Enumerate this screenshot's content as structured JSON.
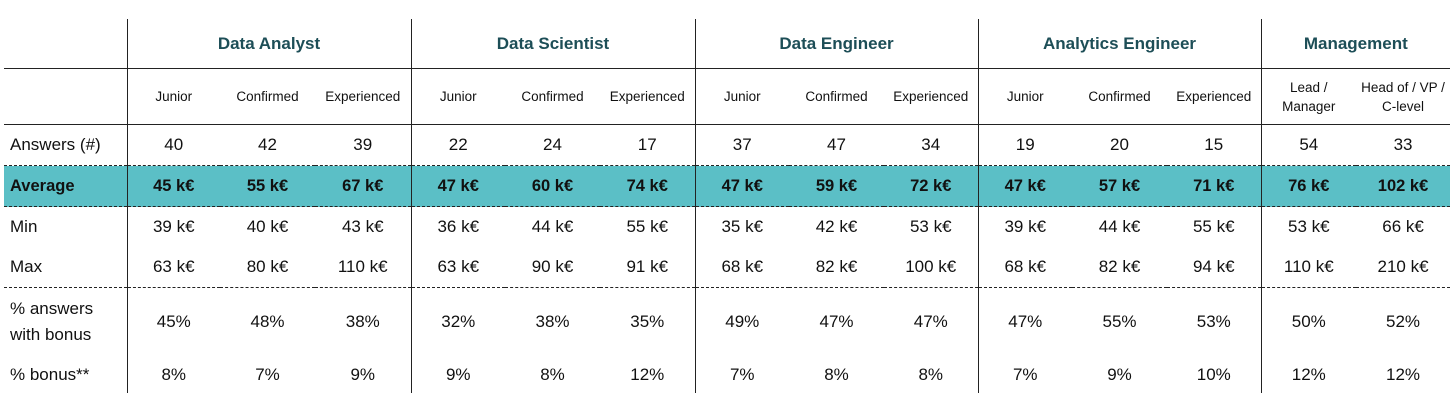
{
  "chart_data": {
    "type": "table",
    "groups": [
      {
        "name": "Data Analyst",
        "levels": [
          "Junior",
          "Confirmed",
          "Experienced"
        ]
      },
      {
        "name": "Data Scientist",
        "levels": [
          "Junior",
          "Confirmed",
          "Experienced"
        ]
      },
      {
        "name": "Data Engineer",
        "levels": [
          "Junior",
          "Confirmed",
          "Experienced"
        ]
      },
      {
        "name": "Analytics Engineer",
        "levels": [
          "Junior",
          "Confirmed",
          "Experienced"
        ]
      },
      {
        "name": "Management",
        "levels": [
          "Lead / Manager",
          "Head of / VP / C-level"
        ]
      }
    ],
    "rows": [
      {
        "label": "Answers (#)",
        "values": [
          "40",
          "42",
          "39",
          "22",
          "24",
          "17",
          "37",
          "47",
          "34",
          "19",
          "20",
          "15",
          "54",
          "33"
        ]
      },
      {
        "label": "Average",
        "values": [
          "45 k€",
          "55 k€",
          "67 k€",
          "47 k€",
          "60 k€",
          "74 k€",
          "47 k€",
          "59 k€",
          "72 k€",
          "47 k€",
          "57 k€",
          "71 k€",
          "76 k€",
          "102 k€"
        ]
      },
      {
        "label": "Min",
        "values": [
          "39 k€",
          "40 k€",
          "43 k€",
          "36 k€",
          "44 k€",
          "55 k€",
          "35 k€",
          "42 k€",
          "53 k€",
          "39 k€",
          "44 k€",
          "55 k€",
          "53 k€",
          "66 k€"
        ]
      },
      {
        "label": "Max",
        "values": [
          "63 k€",
          "80 k€",
          "110 k€",
          "63 k€",
          "90 k€",
          "91 k€",
          "68 k€",
          "82 k€",
          "100 k€",
          "68 k€",
          "82 k€",
          "94 k€",
          "110 k€",
          "210 k€"
        ]
      },
      {
        "label": "% answers with bonus",
        "values": [
          "45%",
          "48%",
          "38%",
          "32%",
          "38%",
          "35%",
          "49%",
          "47%",
          "47%",
          "47%",
          "55%",
          "53%",
          "50%",
          "52%"
        ]
      },
      {
        "label": "% bonus**",
        "values": [
          "8%",
          "7%",
          "9%",
          "9%",
          "8%",
          "12%",
          "7%",
          "8%",
          "8%",
          "7%",
          "9%",
          "10%",
          "12%",
          "12%"
        ]
      }
    ],
    "colors": {
      "highlight_row": "#5bbfc6",
      "group_header_text": "#1d4e57"
    }
  }
}
